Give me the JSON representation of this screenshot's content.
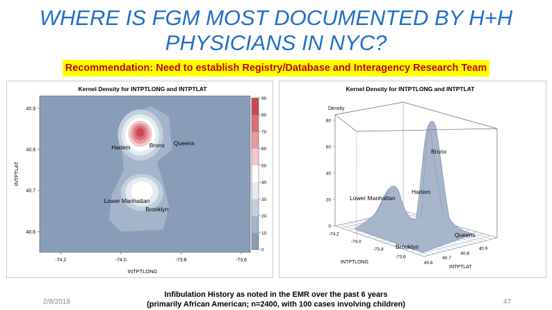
{
  "slide": {
    "title_line1": "WHERE IS FGM MOST DOCUMENTED BY H+H",
    "title_line2": "PHYSICIANS IN NYC?",
    "recommendation": "Recommendation: Need to establish Registry/Database and Interagency Research Team",
    "footer_line1": "Infibulation History as noted in the EMR over the past 6 years",
    "footer_line2": "(primarily African American; n=2400, with 100 cases involving children)",
    "date": "2/8/2018",
    "page_number": "47"
  },
  "colors": {
    "title": "#1f6fc5",
    "highlight": "#ffff00",
    "recommendation_text": "#c00000",
    "surface": "#8a9db8"
  },
  "chart_data": [
    {
      "type": "heatmap",
      "title": "Kernel Density for INTPTLONG and INTPTLAT",
      "xlabel": "INTPTLONG",
      "ylabel": "INTPTLAT",
      "x_ticks": [
        "-74.2",
        "-74.0",
        "-73.8",
        "-73.6"
      ],
      "y_ticks": [
        "40.9",
        "40.8",
        "40.7",
        "40.6"
      ],
      "xlim": [
        -74.27,
        -73.57
      ],
      "ylim": [
        40.55,
        40.93
      ],
      "colorbar_ticks": [
        "90",
        "80",
        "70",
        "60",
        "50",
        "40",
        "30",
        "20",
        "10",
        "0"
      ],
      "colorbar_range": [
        0,
        90
      ],
      "annotations": [
        {
          "text": "Harlem",
          "x": -74.0,
          "y": 40.8
        },
        {
          "text": "Bronx",
          "x": -73.88,
          "y": 40.805
        },
        {
          "text": "Queens",
          "x": -73.79,
          "y": 40.81
        },
        {
          "text": "Lower Manhattan",
          "x": -73.98,
          "y": 40.67
        },
        {
          "text": "Brooklyn",
          "x": -73.88,
          "y": 40.65
        }
      ],
      "peaks": [
        {
          "x": -73.935,
          "y": 40.835,
          "density": 88
        },
        {
          "x": -73.93,
          "y": 40.695,
          "density": 40
        }
      ]
    },
    {
      "type": "surface",
      "title": "Kernel Density for INTPTLONG and INTPTLAT",
      "xlabel": "INTPTLONG",
      "ylabel": "INTPTLAT",
      "zlabel": "Density",
      "x_ticks": [
        "-74.2",
        "-74.0",
        "-73.8",
        "-73.6"
      ],
      "y_ticks": [
        "40.6",
        "40.7",
        "40.8",
        "40.9"
      ],
      "z_ticks": [
        "0",
        "20",
        "40",
        "60",
        "80"
      ],
      "annotations": [
        {
          "text": "Bronx"
        },
        {
          "text": "Harlem"
        },
        {
          "text": "Lower Manhattan"
        },
        {
          "text": "Brooklyn"
        },
        {
          "text": "Queens"
        }
      ]
    }
  ]
}
